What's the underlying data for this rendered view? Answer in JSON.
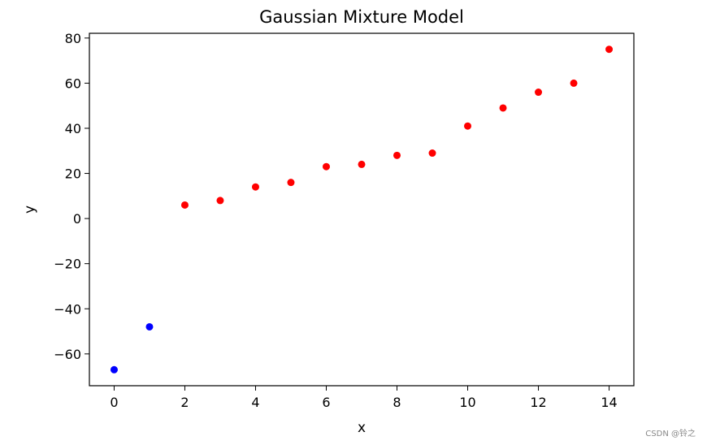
{
  "chart_data": {
    "type": "scatter",
    "title": "Gaussian Mixture Model",
    "xlabel": "x",
    "ylabel": "y",
    "xlim": [
      -0.7,
      14.7
    ],
    "ylim": [
      -74.1,
      82.1
    ],
    "xticks": [
      0,
      2,
      4,
      6,
      8,
      10,
      12,
      14
    ],
    "yticks": [
      -60,
      -40,
      -20,
      0,
      20,
      40,
      60,
      80
    ],
    "xtick_labels": [
      "0",
      "2",
      "4",
      "6",
      "8",
      "10",
      "12",
      "14"
    ],
    "ytick_labels": [
      "−60",
      "−40",
      "−20",
      "0",
      "20",
      "40",
      "60",
      "80"
    ],
    "grid": false,
    "series": [
      {
        "color": "#0000ff",
        "points": [
          [
            0,
            -67
          ],
          [
            1,
            -48
          ]
        ]
      },
      {
        "color": "#ff0000",
        "points": [
          [
            2,
            6
          ],
          [
            3,
            8
          ],
          [
            4,
            14
          ],
          [
            5,
            16
          ],
          [
            6,
            23
          ],
          [
            7,
            24
          ],
          [
            8,
            28
          ],
          [
            9,
            29
          ],
          [
            10,
            41
          ],
          [
            11,
            49
          ],
          [
            12,
            56
          ],
          [
            13,
            60
          ],
          [
            14,
            75
          ]
        ]
      }
    ]
  },
  "watermark": "CSDN @铃之"
}
